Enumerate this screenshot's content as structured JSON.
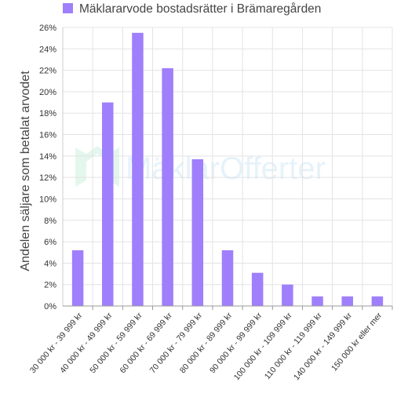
{
  "chart_data": {
    "type": "bar",
    "title": "",
    "xlabel": "",
    "ylabel": "Andelen säljare som betalat arvodet",
    "legend": {
      "position": "top",
      "label": "Mäklararvode bostadsrätter i Brämaregården"
    },
    "watermark": "MäklarOfferter",
    "categories": [
      "30 000 kr - 39 999 kr",
      "40 000 kr - 49 999 kr",
      "50 000 kr - 59 999 kr",
      "60 000 kr - 69 999 kr",
      "70 000 kr - 79 999 kr",
      "80 000 kr - 89 999 kr",
      "90 000 kr - 99 999 kr",
      "100 000 kr - 109 999 kr",
      "110 000 kr - 119 999 kr",
      "140 000 kr - 149 999 kr",
      "150 000 kr eller mer"
    ],
    "series": [
      {
        "name": "Mäklararvode bostadsrätter i Brämaregården",
        "color": "#9f7ffb",
        "values": [
          5.2,
          19.0,
          25.5,
          22.2,
          13.7,
          5.2,
          3.1,
          2.0,
          0.9,
          0.9,
          0.9
        ]
      }
    ],
    "ylim": [
      0,
      26
    ],
    "yticks": [
      "0%",
      "2%",
      "4%",
      "6%",
      "8%",
      "10%",
      "12%",
      "14%",
      "16%",
      "18%",
      "20%",
      "22%",
      "24%",
      "26%"
    ],
    "grid": true
  }
}
